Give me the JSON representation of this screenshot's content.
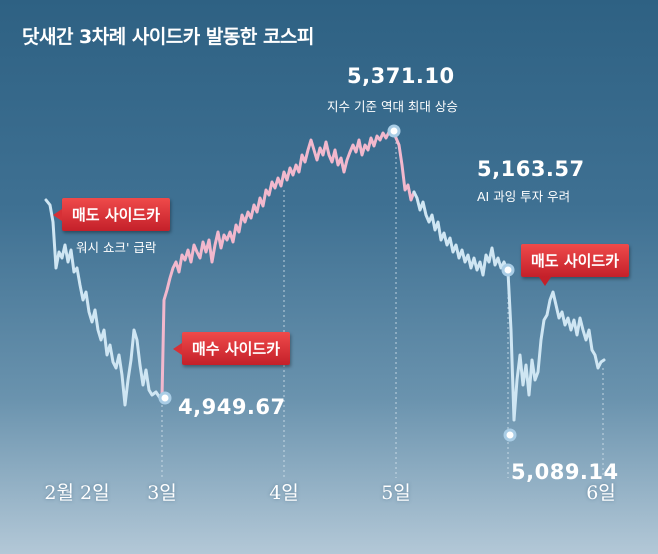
{
  "title": "닷새간 3차례 사이드카 발동한 코스피",
  "colors": {
    "rising_segment": "#f2b8cd",
    "falling_segment": "#cfe6f3",
    "sidecar_tag": "#d63036",
    "marker": "#a9cde6"
  },
  "chart_data": {
    "type": "line",
    "title": "닷새간 3차례 사이드카 발동한 코스피",
    "x_ticks": [
      "2월 2일",
      "3일",
      "4일",
      "5일",
      "6일"
    ],
    "series": [
      {
        "label_only": true,
        "values": []
      }
    ],
    "highlights": [
      {
        "id": "d2_low",
        "date": "3일",
        "value": 4949.67,
        "label": "4,949.67"
      },
      {
        "id": "peak",
        "date": "5일",
        "value": 5371.1,
        "label": "5,371.10",
        "note": "지수 기준 역대 최대 상승"
      },
      {
        "id": "d5_close",
        "date": "5일",
        "value": 5163.57,
        "label": "5,163.57",
        "note": "AI 과잉 투자 우려"
      },
      {
        "id": "d6_low",
        "date": "6일",
        "value": 5089.14,
        "label": "5,089.14"
      }
    ],
    "annotations": [
      {
        "text": "매도 사이드카",
        "date": "2월 2일",
        "note": "워시 쇼크' 급락"
      },
      {
        "text": "매수 사이드카",
        "date": "3일"
      },
      {
        "text": "매도 사이드카",
        "date": "6일"
      }
    ]
  },
  "labels": {
    "d2_low": "4,949.67",
    "peak": "5,371.10",
    "peak_note": "지수 기준 역대 최대 상승",
    "d5_close": "5,163.57",
    "d5_note": "AI 과잉 투자 우려",
    "d6_low": "5,089.14",
    "tag_sell_1": "매도 사이드카",
    "tag_sell_1_note": "워시 쇼크' 급락",
    "tag_buy": "매수 사이드카",
    "tag_sell_2": "매도 사이드카"
  }
}
